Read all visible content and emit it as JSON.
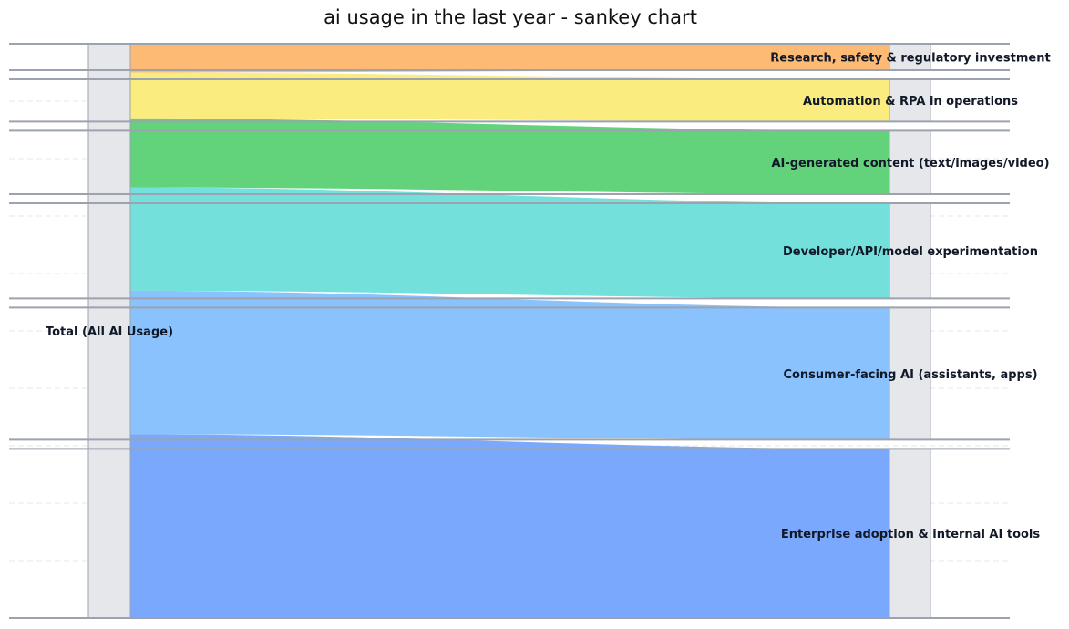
{
  "chart_data": {
    "type": "sankey",
    "title": "ai usage in the last year - sankey chart",
    "source": {
      "name": "Total (All AI Usage)",
      "value": 100
    },
    "targets": [
      {
        "name": "Research, safety & regulatory investment",
        "value": 5,
        "color": "#fdba74"
      },
      {
        "name": "Automation & RPA in operations",
        "value": 8,
        "color": "#fbec7f"
      },
      {
        "name": "AI-generated content (text/images/video)",
        "value": 12,
        "color": "#62d37a"
      },
      {
        "name": "Developer/API/model experimentation",
        "value": 18,
        "color": "#73e0dc"
      },
      {
        "name": "Consumer-facing AI (assistants, apps)",
        "value": 25,
        "color": "#89c2fc"
      },
      {
        "name": "Enterprise adoption & internal AI tools",
        "value": 32,
        "color": "#79a8fc"
      }
    ],
    "grid": true
  }
}
